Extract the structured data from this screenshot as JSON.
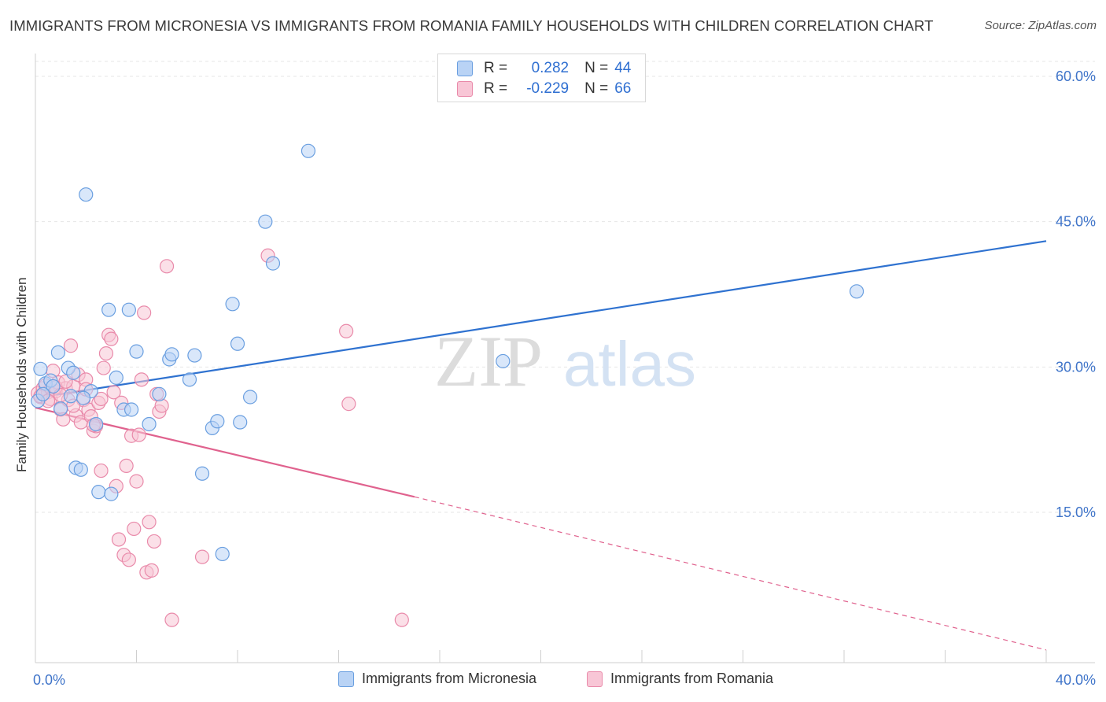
{
  "title": "IMMIGRANTS FROM MICRONESIA VS IMMIGRANTS FROM ROMANIA FAMILY HOUSEHOLDS WITH CHILDREN CORRELATION CHART",
  "source": "Source: ZipAtlas.com",
  "watermark": {
    "zip": "ZIP",
    "atlas": "atlas"
  },
  "colors": {
    "micronesia_fill": "#b9d3f5",
    "micronesia_stroke": "#6a9fe0",
    "micronesia_line": "#2f72d0",
    "romania_fill": "#f8c6d6",
    "romania_stroke": "#e98aaa",
    "romania_line": "#e0628e",
    "axis_text": "#3f74c9",
    "grid": "#e6e6e6"
  },
  "correlation_legend": [
    {
      "r_label": "R =",
      "r_value": "0.282",
      "n_label": "N =",
      "n_value": "44"
    },
    {
      "r_label": "R =",
      "r_value": "-0.229",
      "n_label": "N =",
      "n_value": "66"
    }
  ],
  "chart_data": {
    "type": "scatter",
    "xlabel": "",
    "ylabel": "Family Households with Children",
    "xlim": [
      0,
      40
    ],
    "ylim": [
      0,
      63
    ],
    "y_ticks": [
      15,
      30,
      45,
      60
    ],
    "y_tick_labels": [
      "15.0%",
      "30.0%",
      "45.0%",
      "60.0%"
    ],
    "x_tick_labels": [
      "0.0%",
      "40.0%"
    ],
    "grid": "horizontal dashed",
    "legend_placement": "bottom-center",
    "series": [
      {
        "name": "Immigrants from Micronesia",
        "trendline": {
          "x0": 0,
          "y0": 26.8,
          "x1": 40,
          "y1": 43.0
        },
        "points": [
          [
            0.1,
            26.5
          ],
          [
            0.2,
            29.8
          ],
          [
            0.4,
            28.3
          ],
          [
            0.6,
            28.6
          ],
          [
            0.7,
            28.0
          ],
          [
            0.9,
            31.5
          ],
          [
            1.0,
            25.7
          ],
          [
            1.3,
            29.9
          ],
          [
            1.4,
            27.0
          ],
          [
            1.5,
            29.4
          ],
          [
            1.6,
            19.6
          ],
          [
            1.8,
            19.4
          ],
          [
            2.0,
            47.8
          ],
          [
            2.2,
            27.5
          ],
          [
            2.4,
            24.1
          ],
          [
            2.5,
            17.1
          ],
          [
            2.9,
            35.9
          ],
          [
            3.0,
            16.9
          ],
          [
            3.2,
            28.9
          ],
          [
            3.5,
            25.6
          ],
          [
            3.7,
            35.9
          ],
          [
            3.8,
            25.6
          ],
          [
            4.0,
            31.6
          ],
          [
            4.5,
            24.1
          ],
          [
            4.9,
            27.2
          ],
          [
            5.3,
            30.8
          ],
          [
            5.4,
            31.3
          ],
          [
            6.1,
            28.7
          ],
          [
            6.3,
            31.2
          ],
          [
            6.6,
            19.0
          ],
          [
            7.0,
            23.7
          ],
          [
            7.2,
            24.4
          ],
          [
            7.4,
            10.7
          ],
          [
            7.8,
            36.5
          ],
          [
            8.0,
            32.4
          ],
          [
            8.1,
            24.3
          ],
          [
            8.5,
            26.9
          ],
          [
            9.1,
            45.0
          ],
          [
            9.4,
            40.7
          ],
          [
            10.8,
            52.3
          ],
          [
            18.5,
            30.6
          ],
          [
            32.5,
            37.8
          ],
          [
            0.3,
            27.2
          ],
          [
            1.9,
            26.8
          ]
        ]
      },
      {
        "name": "Immigrants from Romania",
        "trendline": {
          "x0": 0,
          "y0": 25.8,
          "x1": 15,
          "y1": 16.6,
          "dash_x1": 40,
          "dash_y1": 0.8
        },
        "points": [
          [
            0.1,
            27.3
          ],
          [
            0.2,
            26.9
          ],
          [
            0.3,
            27.8
          ],
          [
            0.4,
            28.1
          ],
          [
            0.5,
            27.4
          ],
          [
            0.6,
            26.7
          ],
          [
            0.7,
            29.6
          ],
          [
            0.8,
            27.5
          ],
          [
            0.9,
            28.4
          ],
          [
            1.0,
            25.6
          ],
          [
            1.1,
            24.6
          ],
          [
            1.2,
            27.8
          ],
          [
            1.3,
            26.6
          ],
          [
            1.4,
            32.2
          ],
          [
            1.5,
            28.0
          ],
          [
            1.6,
            25.0
          ],
          [
            1.7,
            29.2
          ],
          [
            1.8,
            24.3
          ],
          [
            1.9,
            26.6
          ],
          [
            2.0,
            28.7
          ],
          [
            2.1,
            25.6
          ],
          [
            2.2,
            24.9
          ],
          [
            2.3,
            23.4
          ],
          [
            2.4,
            23.9
          ],
          [
            2.5,
            26.3
          ],
          [
            2.6,
            19.3
          ],
          [
            2.7,
            29.9
          ],
          [
            2.8,
            31.4
          ],
          [
            2.9,
            33.3
          ],
          [
            3.0,
            32.9
          ],
          [
            3.1,
            27.4
          ],
          [
            3.2,
            17.7
          ],
          [
            3.3,
            12.2
          ],
          [
            3.4,
            26.3
          ],
          [
            3.5,
            10.6
          ],
          [
            3.6,
            19.8
          ],
          [
            3.7,
            10.1
          ],
          [
            3.8,
            22.9
          ],
          [
            3.9,
            13.3
          ],
          [
            4.0,
            18.2
          ],
          [
            4.1,
            23.0
          ],
          [
            4.2,
            28.7
          ],
          [
            4.3,
            35.6
          ],
          [
            4.4,
            8.8
          ],
          [
            4.5,
            14.0
          ],
          [
            4.6,
            9.0
          ],
          [
            4.7,
            12.0
          ],
          [
            4.8,
            27.2
          ],
          [
            4.9,
            25.4
          ],
          [
            5.0,
            26.0
          ],
          [
            5.2,
            40.4
          ],
          [
            5.4,
            3.9
          ],
          [
            6.6,
            10.4
          ],
          [
            9.2,
            41.5
          ],
          [
            12.3,
            33.7
          ],
          [
            12.4,
            26.2
          ],
          [
            14.5,
            3.9
          ],
          [
            0.2,
            27.0
          ],
          [
            0.5,
            26.5
          ],
          [
            0.8,
            27.9
          ],
          [
            1.0,
            27.1
          ],
          [
            1.2,
            28.5
          ],
          [
            1.5,
            26.0
          ],
          [
            2.0,
            27.7
          ],
          [
            2.3,
            24.0
          ],
          [
            2.6,
            26.7
          ]
        ]
      }
    ]
  }
}
